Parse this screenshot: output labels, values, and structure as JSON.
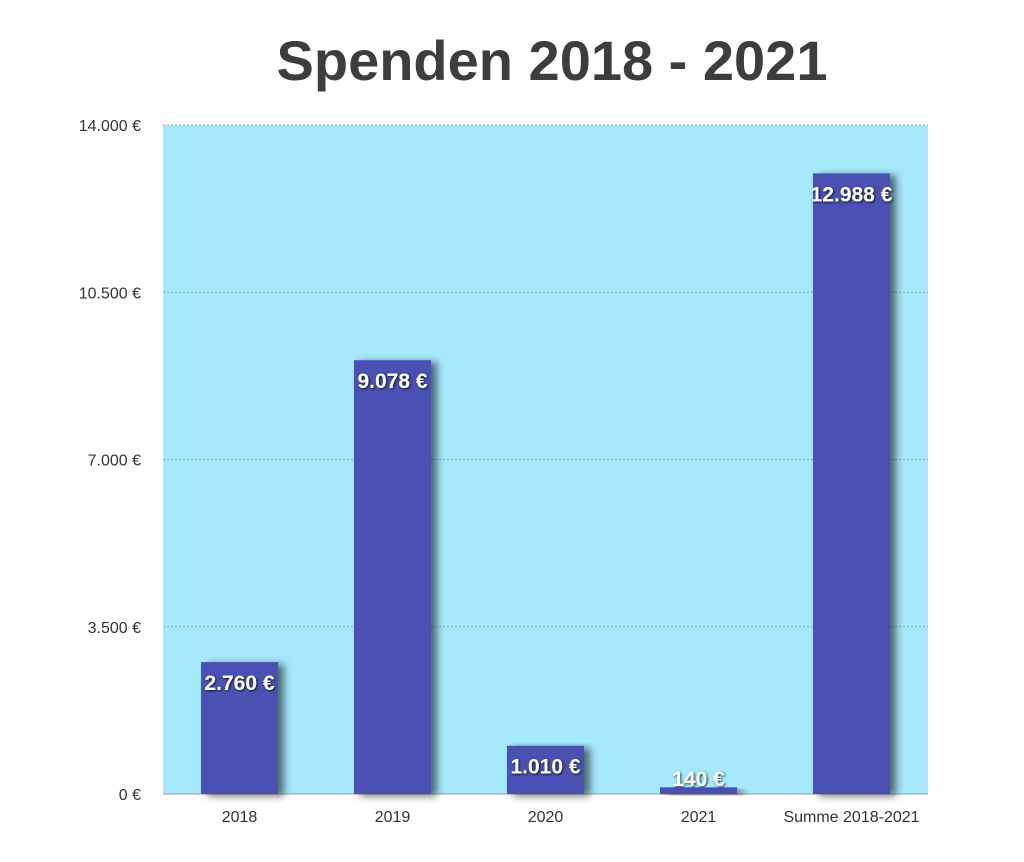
{
  "chart_data": {
    "type": "bar",
    "title": "Spenden 2018 - 2021",
    "categories": [
      "2018",
      "2019",
      "2020",
      "2021",
      "Summe 2018-2021"
    ],
    "values": [
      2760,
      9078,
      1010,
      140,
      12988
    ],
    "value_labels": [
      "2.760 €",
      "9.078 €",
      "1.010 €",
      "140 €",
      "12.988 €"
    ],
    "yticks": [
      0,
      3500,
      7000,
      10500,
      14000
    ],
    "ytick_labels": [
      "0 €",
      "3.500 €",
      "7.000 €",
      "10.500 €",
      "14.000 €"
    ],
    "ylim": [
      0,
      14000
    ],
    "xlabel": "",
    "ylabel": "",
    "grid": true,
    "legend": "none",
    "colors": {
      "plot_background": "#a6e8fc",
      "bar": "#4b51b3",
      "gridline": "#8aa9b5",
      "title": "#3d3d3d"
    }
  }
}
